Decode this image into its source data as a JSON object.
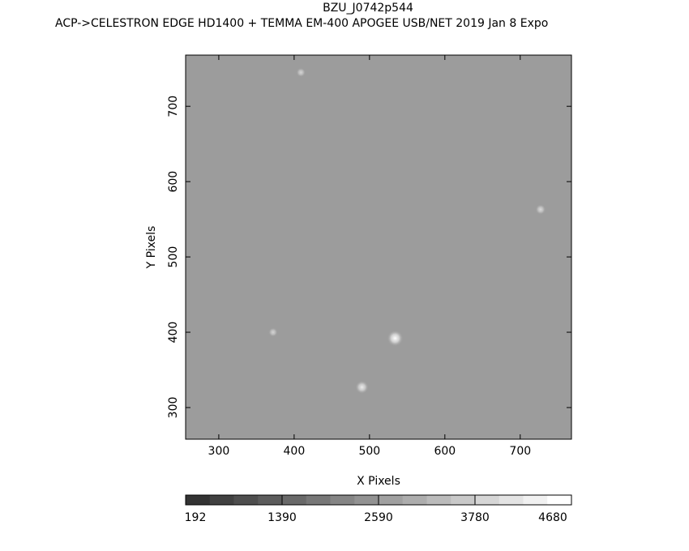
{
  "chart_data": {
    "type": "heatmap",
    "title": "BZU_J0742p544",
    "subtitle": "ACP->CELESTRON EDGE HD1400 + TEMMA EM-400 APOGEE USB/NET   2019 Jan  8    Expo",
    "xlabel": "X Pixels",
    "ylabel": "Y Pixels",
    "xlim": [
      256,
      768
    ],
    "ylim": [
      258,
      768
    ],
    "xticks": [
      300,
      400,
      500,
      600,
      700
    ],
    "yticks": [
      300,
      400,
      500,
      600,
      700
    ],
    "colormap": "grayscale",
    "background_level_color": "#9c9c9c",
    "sources": [
      {
        "x": 534,
        "y": 392,
        "brightness": 1.0
      },
      {
        "x": 490,
        "y": 327,
        "brightness": 0.7
      },
      {
        "x": 727,
        "y": 563,
        "brightness": 0.4
      },
      {
        "x": 372,
        "y": 400,
        "brightness": 0.3
      },
      {
        "x": 409,
        "y": 745,
        "brightness": 0.3
      }
    ],
    "colorbar": {
      "segments": 16,
      "min_color": "#333333",
      "max_color": "#ffffff",
      "tick_labels": [
        "192",
        "1390",
        "2590",
        "3780",
        "4680"
      ]
    }
  }
}
